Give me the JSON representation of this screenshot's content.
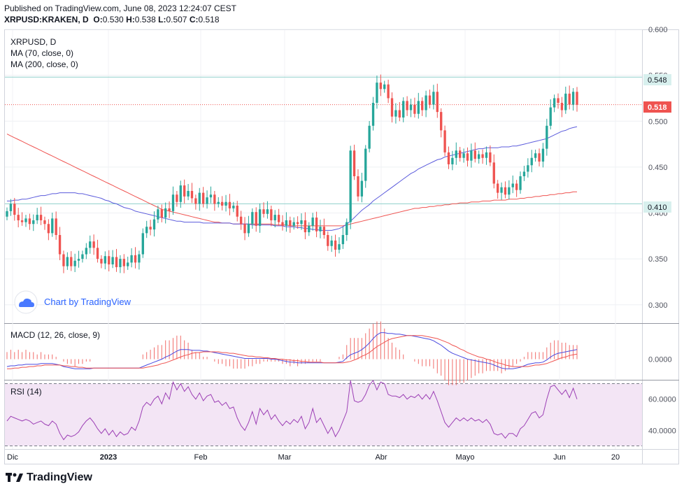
{
  "header": {
    "published": "Published on TradingView.com, June 08, 2023 12:24:07 CEST",
    "symbol": "XRPUSD:KRAKEN, D",
    "o_label": "O:",
    "o": "0.530",
    "h_label": "H:",
    "h": "0.538",
    "l_label": "L:",
    "l": "0.507",
    "c_label": "C:",
    "c": "0.518"
  },
  "legend": {
    "symbol": "XRPUSD, D",
    "ma1": "MA (70, close, 0)",
    "ma2": "MA (200, close, 0)",
    "watermark": "Chart by TradingView",
    "macd": "MACD (12, 26, close, 9)",
    "rsi": "RSI (14)"
  },
  "footer": {
    "brand": "TradingView"
  },
  "colors": {
    "up": "#26a69a",
    "down": "#ef5350",
    "ma70": "#5b5bdc",
    "ma200": "#ef5350",
    "hline": "#8fd0cc",
    "rsi_bg": "#f3e5f5",
    "macd_line": "#4a4ae0",
    "signal_line": "#ef5350"
  },
  "chart_data": [
    {
      "type": "candlestick",
      "title": "XRPUSD, D",
      "ylim": [
        0.28,
        0.6
      ],
      "y_ticks": [
        "0.600",
        "0.550",
        "0.500",
        "0.450",
        "0.400",
        "0.350",
        "0.300"
      ],
      "x_ticks": [
        "Dic",
        "2023",
        "Feb",
        "Mar",
        "Abr",
        "Mayo",
        "Jun",
        "20"
      ],
      "price_lines": [
        {
          "label": "0.548",
          "value": 0.548
        },
        {
          "label": "0.410",
          "value": 0.41
        }
      ],
      "last_price": {
        "label": "0.518",
        "value": 0.518
      },
      "close": [
        0.402,
        0.41,
        0.398,
        0.392,
        0.39,
        0.394,
        0.388,
        0.392,
        0.398,
        0.392,
        0.388,
        0.378,
        0.394,
        0.376,
        0.355,
        0.342,
        0.352,
        0.342,
        0.348,
        0.35,
        0.355,
        0.362,
        0.369,
        0.362,
        0.35,
        0.345,
        0.353,
        0.344,
        0.352,
        0.341,
        0.35,
        0.342,
        0.346,
        0.354,
        0.346,
        0.355,
        0.378,
        0.385,
        0.382,
        0.393,
        0.404,
        0.395,
        0.405,
        0.402,
        0.42,
        0.412,
        0.43,
        0.418,
        0.424,
        0.416,
        0.41,
        0.422,
        0.41,
        0.417,
        0.42,
        0.41,
        0.412,
        0.408,
        0.412,
        0.405,
        0.408,
        0.396,
        0.388,
        0.378,
        0.388,
        0.401,
        0.386,
        0.404,
        0.399,
        0.404,
        0.392,
        0.398,
        0.39,
        0.386,
        0.392,
        0.386,
        0.39,
        0.388,
        0.392,
        0.379,
        0.386,
        0.395,
        0.38,
        0.385,
        0.376,
        0.364,
        0.37,
        0.36,
        0.366,
        0.376,
        0.39,
        0.468,
        0.44,
        0.418,
        0.435,
        0.47,
        0.495,
        0.52,
        0.542,
        0.535,
        0.54,
        0.525,
        0.505,
        0.512,
        0.504,
        0.522,
        0.512,
        0.518,
        0.508,
        0.522,
        0.512,
        0.528,
        0.518,
        0.532,
        0.51,
        0.49,
        0.466,
        0.453,
        0.46,
        0.468,
        0.46,
        0.465,
        0.457,
        0.468,
        0.459,
        0.464,
        0.46,
        0.466,
        0.455,
        0.432,
        0.422,
        0.428,
        0.42,
        0.428,
        0.432,
        0.425,
        0.44,
        0.445,
        0.452,
        0.46,
        0.465,
        0.456,
        0.47,
        0.495,
        0.515,
        0.525,
        0.52,
        0.512,
        0.53,
        0.518,
        0.532,
        0.518
      ],
      "ma70": [
        0.413,
        0.413,
        0.414,
        0.414,
        0.415,
        0.415,
        0.416,
        0.417,
        0.418,
        0.419,
        0.419,
        0.42,
        0.421,
        0.421,
        0.422,
        0.422,
        0.422,
        0.422,
        0.422,
        0.421,
        0.421,
        0.42,
        0.419,
        0.418,
        0.417,
        0.416,
        0.414,
        0.413,
        0.411,
        0.41,
        0.408,
        0.406,
        0.405,
        0.404,
        0.402,
        0.401,
        0.4,
        0.399,
        0.398,
        0.397,
        0.396,
        0.395,
        0.394,
        0.393,
        0.392,
        0.391,
        0.391,
        0.39,
        0.39,
        0.39,
        0.39,
        0.39,
        0.389,
        0.389,
        0.389,
        0.389,
        0.389,
        0.389,
        0.389,
        0.389,
        0.388,
        0.388,
        0.388,
        0.388,
        0.388,
        0.387,
        0.387,
        0.387,
        0.387,
        0.387,
        0.387,
        0.386,
        0.386,
        0.386,
        0.385,
        0.385,
        0.385,
        0.384,
        0.384,
        0.383,
        0.383,
        0.382,
        0.382,
        0.381,
        0.381,
        0.381,
        0.381,
        0.382,
        0.383,
        0.385,
        0.388,
        0.391,
        0.395,
        0.399,
        0.403,
        0.406,
        0.409,
        0.413,
        0.416,
        0.419,
        0.422,
        0.425,
        0.428,
        0.431,
        0.434,
        0.437,
        0.44,
        0.443,
        0.445,
        0.448,
        0.45,
        0.452,
        0.454,
        0.456,
        0.458,
        0.459,
        0.461,
        0.462,
        0.463,
        0.464,
        0.465,
        0.466,
        0.467,
        0.468,
        0.469,
        0.47,
        0.47,
        0.471,
        0.471,
        0.471,
        0.471,
        0.472,
        0.472,
        0.472,
        0.473,
        0.473,
        0.474,
        0.475,
        0.476,
        0.477,
        0.478,
        0.479,
        0.48,
        0.481,
        0.483,
        0.485,
        0.487,
        0.489,
        0.49,
        0.492,
        0.493,
        0.494
      ],
      "ma200": [
        0.486,
        0.484,
        0.482,
        0.48,
        0.478,
        0.476,
        0.474,
        0.472,
        0.47,
        0.468,
        0.466,
        0.464,
        0.462,
        0.46,
        0.458,
        0.456,
        0.454,
        0.452,
        0.45,
        0.448,
        0.446,
        0.444,
        0.442,
        0.44,
        0.438,
        0.436,
        0.434,
        0.432,
        0.43,
        0.428,
        0.426,
        0.424,
        0.422,
        0.42,
        0.418,
        0.416,
        0.414,
        0.412,
        0.41,
        0.408,
        0.406,
        0.404,
        0.403,
        0.402,
        0.401,
        0.4,
        0.399,
        0.398,
        0.397,
        0.396,
        0.395,
        0.394,
        0.393,
        0.392,
        0.391,
        0.39,
        0.39,
        0.389,
        0.389,
        0.389,
        0.388,
        0.388,
        0.388,
        0.388,
        0.388,
        0.388,
        0.388,
        0.388,
        0.388,
        0.388,
        0.388,
        0.387,
        0.387,
        0.387,
        0.387,
        0.386,
        0.386,
        0.386,
        0.386,
        0.386,
        0.386,
        0.386,
        0.386,
        0.386,
        0.386,
        0.386,
        0.386,
        0.386,
        0.386,
        0.386,
        0.387,
        0.388,
        0.389,
        0.39,
        0.391,
        0.392,
        0.393,
        0.394,
        0.395,
        0.396,
        0.397,
        0.398,
        0.399,
        0.4,
        0.401,
        0.402,
        0.403,
        0.404,
        0.405,
        0.405,
        0.406,
        0.406,
        0.407,
        0.407,
        0.408,
        0.408,
        0.409,
        0.409,
        0.41,
        0.41,
        0.411,
        0.411,
        0.411,
        0.412,
        0.412,
        0.412,
        0.413,
        0.413,
        0.413,
        0.414,
        0.414,
        0.414,
        0.414,
        0.415,
        0.415,
        0.415,
        0.416,
        0.416,
        0.417,
        0.417,
        0.418,
        0.418,
        0.419,
        0.419,
        0.42,
        0.42,
        0.421,
        0.421,
        0.422,
        0.422,
        0.423,
        0.423
      ]
    },
    {
      "type": "line",
      "title": "MACD (12, 26, close, 9)",
      "y_ticks": [
        "0.0000"
      ],
      "ylim": [
        -0.028,
        0.048
      ],
      "series": [
        {
          "name": "MACD",
          "values": [
            -0.01,
            -0.009,
            -0.009,
            -0.008,
            -0.008,
            -0.007,
            -0.007,
            -0.007,
            -0.007,
            -0.006,
            -0.006,
            -0.006,
            -0.006,
            -0.007,
            -0.008,
            -0.01,
            -0.011,
            -0.012,
            -0.013,
            -0.013,
            -0.013,
            -0.013,
            -0.013,
            -0.012,
            -0.012,
            -0.012,
            -0.012,
            -0.012,
            -0.012,
            -0.012,
            -0.012,
            -0.012,
            -0.012,
            -0.012,
            -0.012,
            -0.012,
            -0.01,
            -0.008,
            -0.006,
            -0.004,
            -0.002,
            0.0,
            0.003,
            0.005,
            0.008,
            0.011,
            0.013,
            0.013,
            0.013,
            0.012,
            0.012,
            0.012,
            0.011,
            0.011,
            0.01,
            0.009,
            0.008,
            0.007,
            0.006,
            0.005,
            0.004,
            0.003,
            0.002,
            0.001,
            0.001,
            0.001,
            0.001,
            0.001,
            0.001,
            0.001,
            0.0,
            0.0,
            -0.001,
            -0.002,
            -0.003,
            -0.004,
            -0.004,
            -0.005,
            -0.005,
            -0.005,
            -0.005,
            -0.005,
            -0.005,
            -0.005,
            -0.005,
            -0.005,
            -0.005,
            -0.005,
            -0.004,
            -0.003,
            0.002,
            0.006,
            0.008,
            0.01,
            0.013,
            0.017,
            0.022,
            0.028,
            0.033,
            0.036,
            0.036,
            0.035,
            0.035,
            0.034,
            0.034,
            0.033,
            0.032,
            0.032,
            0.031,
            0.03,
            0.029,
            0.028,
            0.027,
            0.025,
            0.022,
            0.019,
            0.015,
            0.011,
            0.008,
            0.006,
            0.004,
            0.002,
            0.0,
            -0.001,
            -0.002,
            -0.003,
            -0.004,
            -0.005,
            -0.006,
            -0.008,
            -0.01,
            -0.012,
            -0.013,
            -0.013,
            -0.013,
            -0.012,
            -0.011,
            -0.009,
            -0.007,
            -0.006,
            -0.005,
            -0.005,
            -0.004,
            -0.001,
            0.003,
            0.006,
            0.008,
            0.009,
            0.01,
            0.011,
            0.012,
            0.013
          ]
        },
        {
          "name": "Signal",
          "values": [
            -0.013,
            -0.013,
            -0.012,
            -0.012,
            -0.011,
            -0.011,
            -0.01,
            -0.01,
            -0.009,
            -0.009,
            -0.008,
            -0.008,
            -0.008,
            -0.008,
            -0.008,
            -0.009,
            -0.009,
            -0.01,
            -0.01,
            -0.011,
            -0.011,
            -0.012,
            -0.012,
            -0.012,
            -0.012,
            -0.012,
            -0.012,
            -0.012,
            -0.012,
            -0.012,
            -0.012,
            -0.012,
            -0.012,
            -0.012,
            -0.012,
            -0.012,
            -0.012,
            -0.011,
            -0.01,
            -0.009,
            -0.008,
            -0.006,
            -0.005,
            -0.003,
            -0.001,
            0.001,
            0.003,
            0.005,
            0.006,
            0.008,
            0.009,
            0.009,
            0.01,
            0.01,
            0.01,
            0.01,
            0.01,
            0.009,
            0.009,
            0.008,
            0.008,
            0.007,
            0.006,
            0.005,
            0.004,
            0.004,
            0.003,
            0.003,
            0.002,
            0.002,
            0.001,
            0.001,
            0.0,
            0.0,
            -0.001,
            -0.001,
            -0.002,
            -0.002,
            -0.003,
            -0.003,
            -0.004,
            -0.004,
            -0.004,
            -0.004,
            -0.005,
            -0.005,
            -0.005,
            -0.005,
            -0.005,
            -0.005,
            -0.004,
            -0.003,
            -0.001,
            0.001,
            0.004,
            0.006,
            0.009,
            0.013,
            0.017,
            0.02,
            0.023,
            0.026,
            0.028,
            0.029,
            0.03,
            0.031,
            0.032,
            0.032,
            0.032,
            0.032,
            0.032,
            0.031,
            0.03,
            0.029,
            0.028,
            0.026,
            0.024,
            0.022,
            0.019,
            0.017,
            0.014,
            0.012,
            0.009,
            0.007,
            0.005,
            0.003,
            0.002,
            0.0,
            -0.001,
            -0.003,
            -0.005,
            -0.006,
            -0.008,
            -0.009,
            -0.01,
            -0.01,
            -0.01,
            -0.01,
            -0.01,
            -0.009,
            -0.008,
            -0.008,
            -0.007,
            -0.006,
            -0.004,
            -0.002,
            0.0,
            0.002,
            0.003,
            0.005,
            0.006,
            0.007
          ]
        }
      ]
    },
    {
      "type": "line",
      "title": "RSI (14)",
      "ylim": [
        28,
        72
      ],
      "y_ticks": [
        "60.0000",
        "40.0000"
      ],
      "bands": [
        70,
        30
      ],
      "series": [
        {
          "name": "RSI",
          "values": [
            46,
            49,
            48,
            47,
            46,
            47,
            46,
            44,
            45,
            46,
            44,
            43,
            46,
            44,
            38,
            34,
            37,
            36,
            37,
            39,
            43,
            46,
            48,
            45,
            41,
            38,
            41,
            37,
            40,
            36,
            39,
            37,
            38,
            42,
            40,
            46,
            55,
            58,
            56,
            60,
            62,
            57,
            64,
            60,
            71,
            66,
            70,
            65,
            68,
            63,
            60,
            64,
            59,
            62,
            63,
            58,
            59,
            56,
            58,
            54,
            55,
            48,
            43,
            40,
            45,
            52,
            44,
            54,
            50,
            53,
            47,
            50,
            46,
            43,
            46,
            44,
            47,
            45,
            49,
            41,
            45,
            54,
            45,
            48,
            43,
            38,
            42,
            36,
            40,
            46,
            52,
            72,
            59,
            58,
            59,
            63,
            69,
            72,
            66,
            71,
            70,
            63,
            62,
            62,
            61,
            63,
            60,
            62,
            61,
            63,
            60,
            63,
            60,
            65,
            59,
            52,
            45,
            42,
            45,
            48,
            46,
            48,
            46,
            48,
            46,
            47,
            45,
            47,
            44,
            38,
            37,
            38,
            35,
            38,
            38,
            36,
            41,
            43,
            47,
            51,
            52,
            48,
            50,
            60,
            68,
            69,
            66,
            63,
            66,
            61,
            67,
            60
          ]
        }
      ]
    }
  ]
}
